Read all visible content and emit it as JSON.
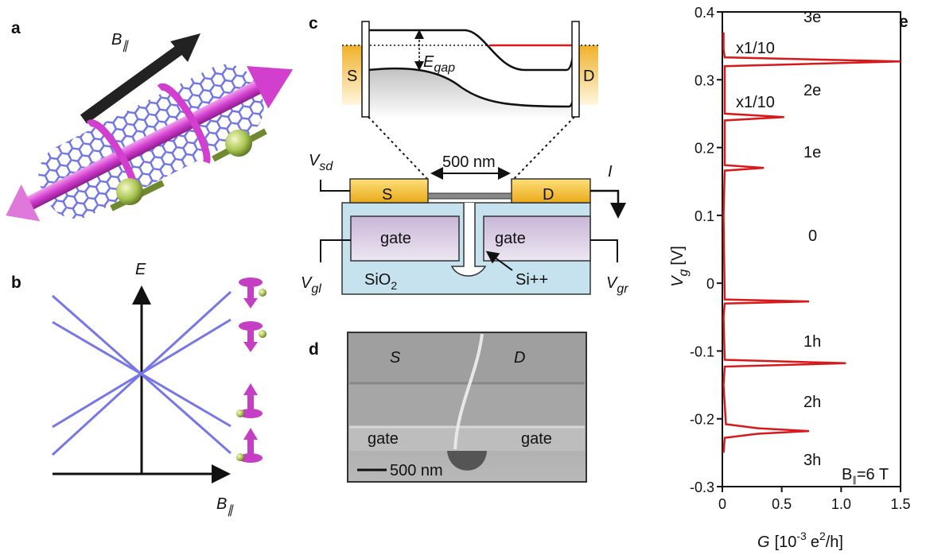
{
  "panel_labels": [
    "a",
    "b",
    "c",
    "d",
    "e"
  ],
  "panel_a": {
    "field": {
      "main": "B",
      "sub": "∥"
    }
  },
  "panel_b": {
    "energy": "E",
    "field": {
      "main": "B",
      "sub": "∥"
    }
  },
  "panel_c": {
    "band_source": "S",
    "band_drain": "D",
    "gap": {
      "main": "E",
      "sub": "gap"
    },
    "scale": "500 nm",
    "vsd": {
      "main": "V",
      "sub": "sd"
    },
    "current": "I",
    "device_source": "S",
    "device_drain": "D",
    "gate_left": "gate",
    "gate_right": "gate",
    "oxide": {
      "main": "SiO",
      "sub": "2"
    },
    "substrate": "Si++",
    "vgl": {
      "main": "V",
      "sub": "gl"
    },
    "vgr": {
      "main": "V",
      "sub": "gr"
    }
  },
  "panel_d": {
    "source": "S",
    "drain": "D",
    "gate_left": "gate",
    "gate_right": "gate",
    "scale": "500 nm"
  },
  "chart_data": {
    "type": "line",
    "y_label": {
      "main": "V",
      "sub": "g",
      "unit": "[V]"
    },
    "x_label": {
      "main": "G",
      "open": "[10",
      "exp": "-3",
      "unit": "e",
      "unit_exp": "2",
      "tail": "/h]"
    },
    "xlim": [
      0,
      1.5
    ],
    "ylim": [
      -0.3,
      0.4
    ],
    "xticks": [
      0,
      0.5,
      {
        "value": 1,
        "label": "1.0"
      },
      1.5
    ],
    "yticks": [
      0.4,
      0.3,
      0.2,
      0.1,
      0,
      -0.1,
      -0.2,
      -0.3
    ],
    "series": [
      {
        "color": "#d7191c",
        "x": [
          0.01,
          0.02,
          0.3,
          0.73,
          0.3,
          0.03,
          0.01,
          0.02,
          1.04,
          0.02,
          0.01,
          0.02,
          0.73,
          0.02,
          0.01,
          0.02,
          0.35,
          0.02,
          0.02,
          0.52,
          0.02,
          0.02,
          1.5,
          0.02,
          0.01,
          0.01
        ],
        "y": [
          -0.25,
          -0.228,
          -0.222,
          -0.218,
          -0.214,
          -0.208,
          -0.15,
          -0.123,
          -0.118,
          -0.113,
          -0.05,
          -0.03,
          -0.027,
          -0.024,
          0.1,
          0.166,
          0.17,
          0.174,
          0.24,
          0.245,
          0.25,
          0.32,
          0.327,
          0.333,
          0.345,
          0.37
        ]
      }
    ],
    "annotations": [
      "x1/10",
      "x1/10",
      "3e",
      "2e",
      "1e",
      "0",
      "1h",
      "2h",
      "3h"
    ],
    "field_note": {
      "main": "B",
      "sub": "∥",
      "rest": "=6 T"
    }
  }
}
